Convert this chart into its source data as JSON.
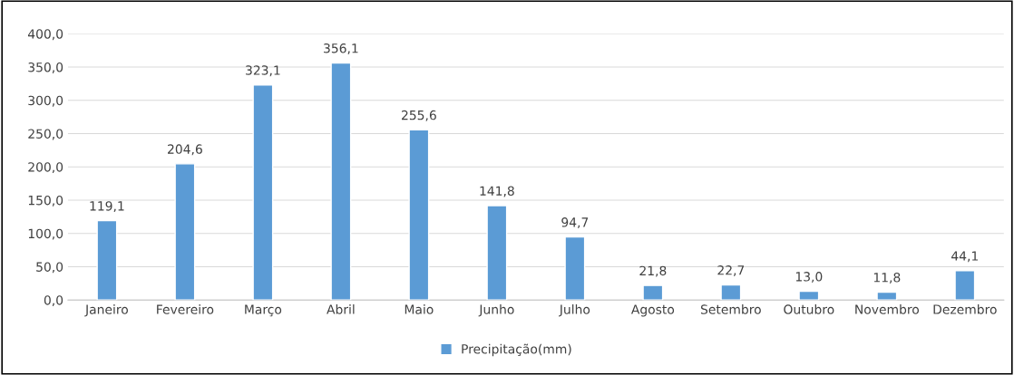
{
  "chart_data": {
    "type": "bar",
    "categories": [
      "Janeiro",
      "Fevereiro",
      "Março",
      "Abril",
      "Maio",
      "Junho",
      "Julho",
      "Agosto",
      "Setembro",
      "Outubro",
      "Novembro",
      "Dezembro"
    ],
    "series": [
      {
        "name": "Precipitação(mm)",
        "color": "#5b9bd5",
        "values": [
          119.1,
          204.6,
          323.1,
          356.1,
          255.6,
          141.8,
          94.7,
          21.8,
          22.7,
          13.0,
          11.8,
          44.1
        ],
        "value_labels": [
          "119,1",
          "204,6",
          "323,1",
          "356,1",
          "255,6",
          "141,8",
          "94,7",
          "21,8",
          "22,7",
          "13,0",
          "11,8",
          "44,1"
        ]
      }
    ],
    "ylim": [
      0,
      400
    ],
    "yticks": [
      {
        "value": 0,
        "label": "0,0"
      },
      {
        "value": 50,
        "label": "50,0"
      },
      {
        "value": 100,
        "label": "100,0"
      },
      {
        "value": 150,
        "label": "150,0"
      },
      {
        "value": 200,
        "label": "200,0"
      },
      {
        "value": 250,
        "label": "250,0"
      },
      {
        "value": 300,
        "label": "300,0"
      },
      {
        "value": 350,
        "label": "350,0"
      },
      {
        "value": 400,
        "label": "400,0"
      }
    ],
    "grid": "y",
    "legend": "bottom"
  }
}
